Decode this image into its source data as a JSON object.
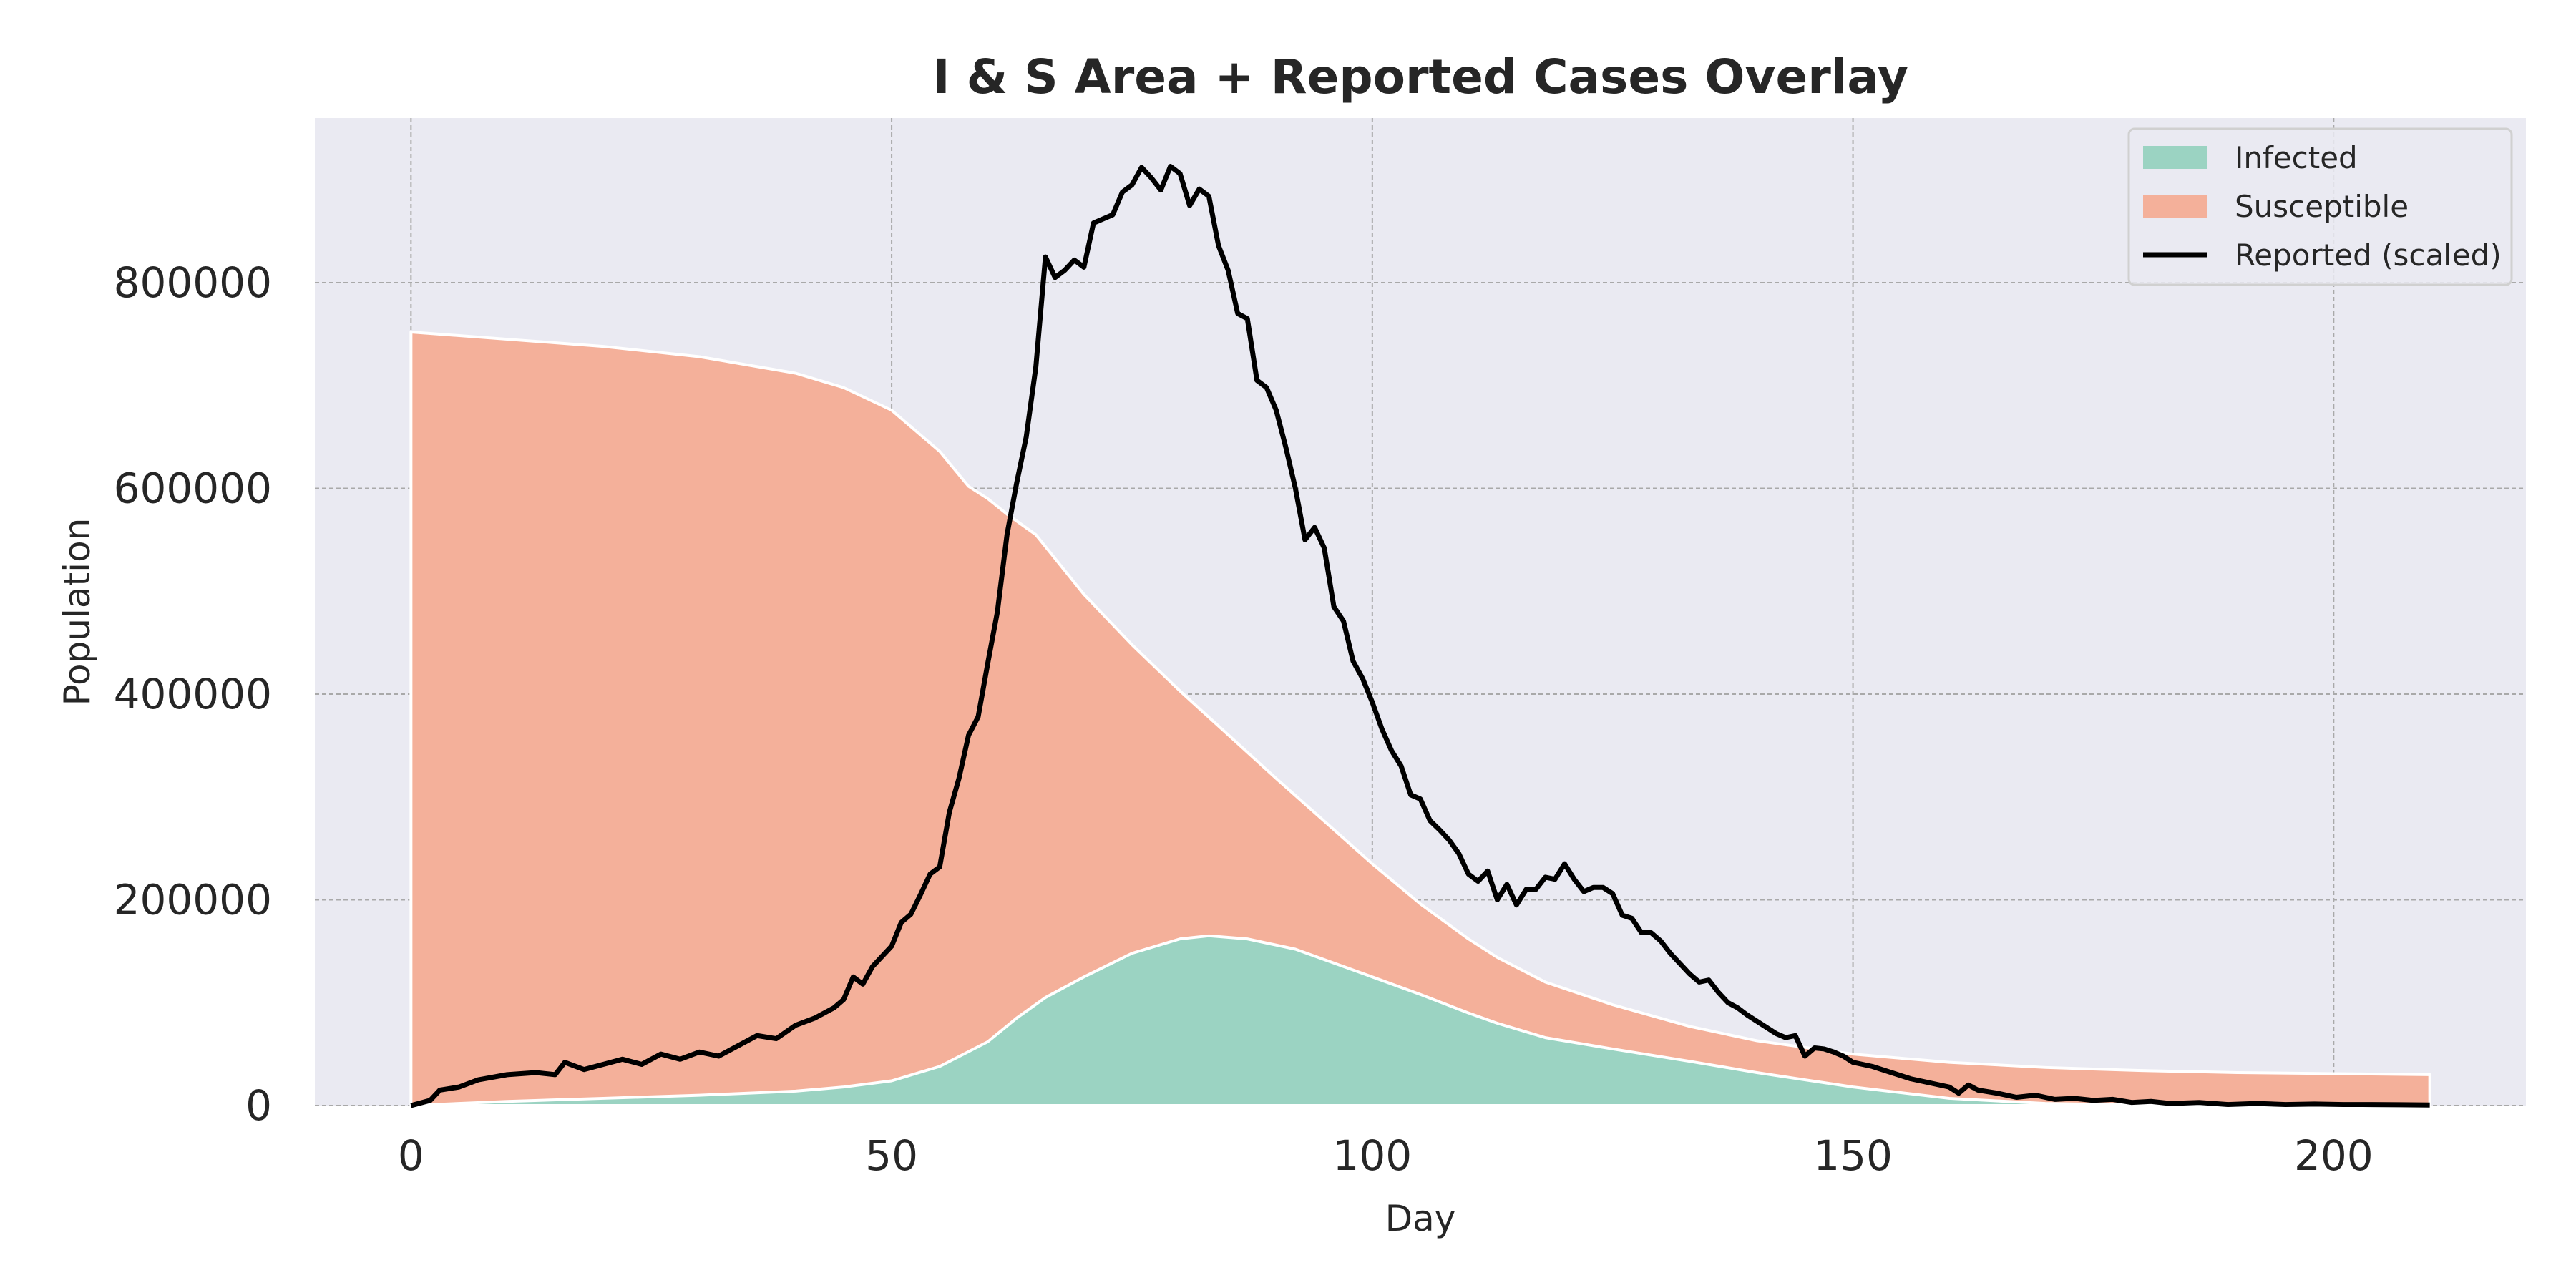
{
  "chart_data": {
    "type": "area",
    "title": "I & S Area + Reported Cases Overlay",
    "xlabel": "Day",
    "ylabel": "Population",
    "xlim": [
      -10,
      220
    ],
    "ylim": [
      0,
      960000
    ],
    "x_ticks": [
      0,
      50,
      100,
      150,
      200
    ],
    "y_ticks": [
      0,
      200000,
      400000,
      600000,
      800000
    ],
    "grid": true,
    "legend_position": "top-right",
    "stacked": true,
    "series": [
      {
        "name": "Infected",
        "color": "#9bd3c2",
        "points": [
          [
            0,
            0
          ],
          [
            10,
            4000
          ],
          [
            20,
            7000
          ],
          [
            30,
            10000
          ],
          [
            40,
            14000
          ],
          [
            45,
            18000
          ],
          [
            50,
            24000
          ],
          [
            55,
            38000
          ],
          [
            60,
            62000
          ],
          [
            63,
            85000
          ],
          [
            66,
            105000
          ],
          [
            70,
            125000
          ],
          [
            75,
            148000
          ],
          [
            80,
            162000
          ],
          [
            83,
            165000
          ],
          [
            87,
            162000
          ],
          [
            92,
            152000
          ],
          [
            100,
            125000
          ],
          [
            105,
            108000
          ],
          [
            110,
            90000
          ],
          [
            113,
            80000
          ],
          [
            118,
            66000
          ],
          [
            125,
            55000
          ],
          [
            133,
            43000
          ],
          [
            140,
            32000
          ],
          [
            150,
            18000
          ],
          [
            160,
            7000
          ],
          [
            170,
            2000
          ],
          [
            180,
            500
          ],
          [
            190,
            100
          ],
          [
            200,
            0
          ],
          [
            210,
            0
          ]
        ]
      },
      {
        "name": "Susceptible",
        "color": "#f4b09a",
        "points": [
          [
            0,
            752000
          ],
          [
            10,
            745000
          ],
          [
            20,
            738000
          ],
          [
            30,
            728000
          ],
          [
            40,
            712000
          ],
          [
            45,
            698000
          ],
          [
            50,
            676000
          ],
          [
            55,
            636000
          ],
          [
            58,
            602000
          ],
          [
            60,
            590000
          ],
          [
            62,
            575000
          ],
          [
            65,
            555000
          ],
          [
            70,
            497000
          ],
          [
            75,
            448000
          ],
          [
            80,
            403000
          ],
          [
            90,
            318000
          ],
          [
            100,
            235000
          ],
          [
            105,
            196000
          ],
          [
            110,
            162000
          ],
          [
            113,
            144000
          ],
          [
            118,
            120000
          ],
          [
            125,
            98000
          ],
          [
            133,
            77000
          ],
          [
            140,
            63000
          ],
          [
            150,
            50000
          ],
          [
            160,
            42000
          ],
          [
            170,
            37000
          ],
          [
            180,
            34000
          ],
          [
            190,
            32000
          ],
          [
            200,
            31000
          ],
          [
            210,
            30000
          ]
        ]
      },
      {
        "name": "Reported (scaled)",
        "type": "line",
        "color": "#000000",
        "points": [
          [
            0,
            0
          ],
          [
            2,
            5000
          ],
          [
            3,
            15000
          ],
          [
            5,
            18000
          ],
          [
            7,
            25000
          ],
          [
            10,
            30000
          ],
          [
            13,
            32000
          ],
          [
            15,
            30000
          ],
          [
            16,
            42000
          ],
          [
            18,
            35000
          ],
          [
            20,
            40000
          ],
          [
            22,
            45000
          ],
          [
            24,
            40000
          ],
          [
            26,
            50000
          ],
          [
            28,
            45000
          ],
          [
            30,
            52000
          ],
          [
            32,
            48000
          ],
          [
            34,
            58000
          ],
          [
            36,
            68000
          ],
          [
            38,
            65000
          ],
          [
            40,
            78000
          ],
          [
            42,
            85000
          ],
          [
            44,
            95000
          ],
          [
            45,
            103000
          ],
          [
            46,
            125000
          ],
          [
            47,
            118000
          ],
          [
            48,
            135000
          ],
          [
            50,
            155000
          ],
          [
            51,
            178000
          ],
          [
            52,
            186000
          ],
          [
            53,
            205000
          ],
          [
            54,
            225000
          ],
          [
            55,
            232000
          ],
          [
            56,
            285000
          ],
          [
            57,
            318000
          ],
          [
            58,
            360000
          ],
          [
            59,
            378000
          ],
          [
            60,
            430000
          ],
          [
            61,
            480000
          ],
          [
            62,
            555000
          ],
          [
            63,
            605000
          ],
          [
            64,
            650000
          ],
          [
            65,
            718000
          ],
          [
            66,
            825000
          ],
          [
            67,
            805000
          ],
          [
            68,
            812000
          ],
          [
            69,
            822000
          ],
          [
            70,
            815000
          ],
          [
            71,
            858000
          ],
          [
            72,
            862000
          ],
          [
            73,
            866000
          ],
          [
            74,
            888000
          ],
          [
            75,
            895000
          ],
          [
            76,
            912000
          ],
          [
            77,
            902000
          ],
          [
            78,
            890000
          ],
          [
            79,
            913000
          ],
          [
            80,
            906000
          ],
          [
            81,
            875000
          ],
          [
            82,
            891000
          ],
          [
            83,
            884000
          ],
          [
            84,
            836000
          ],
          [
            85,
            812000
          ],
          [
            86,
            770000
          ],
          [
            87,
            765000
          ],
          [
            88,
            705000
          ],
          [
            89,
            698000
          ],
          [
            90,
            676000
          ],
          [
            91,
            640000
          ],
          [
            92,
            600000
          ],
          [
            93,
            550000
          ],
          [
            94,
            562000
          ],
          [
            95,
            542000
          ],
          [
            96,
            485000
          ],
          [
            97,
            471000
          ],
          [
            98,
            432000
          ],
          [
            99,
            415000
          ],
          [
            100,
            392000
          ],
          [
            101,
            366000
          ],
          [
            102,
            345000
          ],
          [
            103,
            330000
          ],
          [
            104,
            302000
          ],
          [
            105,
            298000
          ],
          [
            106,
            277000
          ],
          [
            107,
            268000
          ],
          [
            108,
            258000
          ],
          [
            109,
            245000
          ],
          [
            110,
            225000
          ],
          [
            111,
            218000
          ],
          [
            112,
            228000
          ],
          [
            113,
            200000
          ],
          [
            114,
            215000
          ],
          [
            115,
            195000
          ],
          [
            116,
            210000
          ],
          [
            117,
            210000
          ],
          [
            118,
            222000
          ],
          [
            119,
            220000
          ],
          [
            120,
            235000
          ],
          [
            121,
            220000
          ],
          [
            122,
            208000
          ],
          [
            123,
            212000
          ],
          [
            124,
            212000
          ],
          [
            125,
            206000
          ],
          [
            126,
            185000
          ],
          [
            127,
            182000
          ],
          [
            128,
            168000
          ],
          [
            129,
            168000
          ],
          [
            130,
            160000
          ],
          [
            131,
            148000
          ],
          [
            132,
            138000
          ],
          [
            133,
            128000
          ],
          [
            134,
            120000
          ],
          [
            135,
            122000
          ],
          [
            136,
            110000
          ],
          [
            137,
            100000
          ],
          [
            138,
            95000
          ],
          [
            139,
            88000
          ],
          [
            140,
            82000
          ],
          [
            141,
            76000
          ],
          [
            142,
            70000
          ],
          [
            143,
            66000
          ],
          [
            144,
            68000
          ],
          [
            145,
            48000
          ],
          [
            146,
            56000
          ],
          [
            147,
            55000
          ],
          [
            148,
            52000
          ],
          [
            149,
            48000
          ],
          [
            150,
            42000
          ],
          [
            152,
            38000
          ],
          [
            154,
            32000
          ],
          [
            156,
            26000
          ],
          [
            158,
            22000
          ],
          [
            160,
            18000
          ],
          [
            161,
            12000
          ],
          [
            162,
            20000
          ],
          [
            163,
            15000
          ],
          [
            165,
            12000
          ],
          [
            167,
            8000
          ],
          [
            169,
            10000
          ],
          [
            171,
            6000
          ],
          [
            173,
            7000
          ],
          [
            175,
            5000
          ],
          [
            177,
            6000
          ],
          [
            179,
            3000
          ],
          [
            181,
            4000
          ],
          [
            183,
            2000
          ],
          [
            186,
            3000
          ],
          [
            189,
            1000
          ],
          [
            192,
            2000
          ],
          [
            195,
            1000
          ],
          [
            198,
            1500
          ],
          [
            201,
            1000
          ],
          [
            204,
            1000
          ],
          [
            207,
            800
          ],
          [
            210,
            500
          ]
        ]
      }
    ]
  }
}
